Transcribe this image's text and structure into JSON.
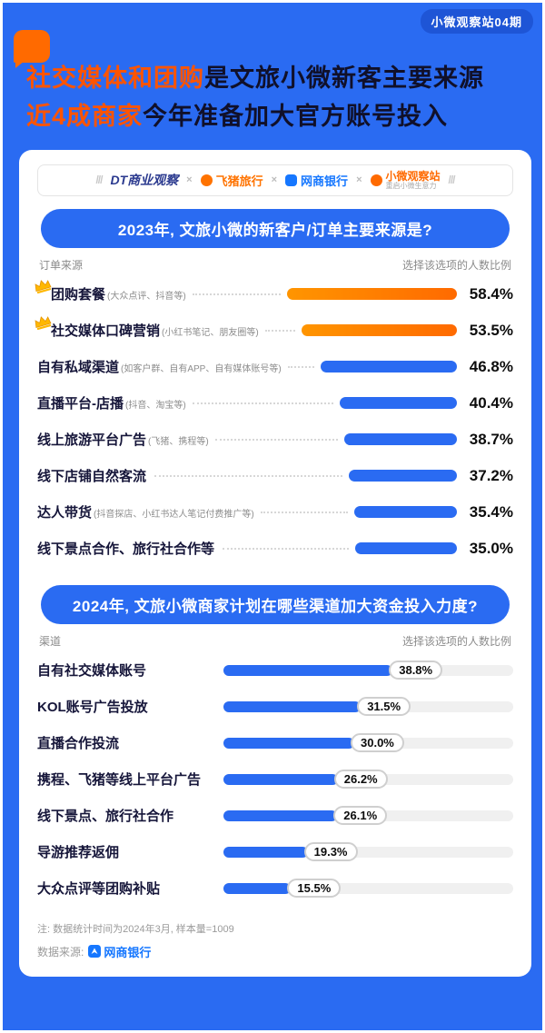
{
  "page": {
    "issue_badge": "小微观察站04期",
    "title_line1_highlight": "社交媒体和团购",
    "title_line1_rest": "是文旅小微新客主要来源",
    "title_line2_highlight": "近4成商家",
    "title_line2_rest": "今年准备加大官方账号投入"
  },
  "logos": {
    "dt": "DT商业观察",
    "feizhu": "飞猪旅行",
    "wangshang": "网商银行",
    "xiaowei": "小微观察站",
    "xiaowei_sub": "重启小微生意力",
    "separator": "×"
  },
  "section1": {
    "heading": "2023年, 文旅小微的新客户/订单主要来源是?",
    "col_left": "订单来源",
    "col_right": "选择该选项的人数比例",
    "rows": [
      {
        "label": "团购套餐",
        "note": "(大众点评、抖音等)",
        "value": "58.4%",
        "pct": 58.4
      },
      {
        "label": "社交媒体口碑营销",
        "note": "(小红书笔记、朋友圈等)",
        "value": "53.5%",
        "pct": 53.5
      },
      {
        "label": "自有私域渠道",
        "note": "(如客户群、自有APP、自有媒体账号等)",
        "value": "46.8%",
        "pct": 46.8
      },
      {
        "label": "直播平台-店播",
        "note": "(抖音、淘宝等)",
        "value": "40.4%",
        "pct": 40.4
      },
      {
        "label": "线上旅游平台广告",
        "note": "(飞猪、携程等)",
        "value": "38.7%",
        "pct": 38.7
      },
      {
        "label": "线下店铺自然客流",
        "note": "",
        "value": "37.2%",
        "pct": 37.2
      },
      {
        "label": "达人带货",
        "note": "(抖音探店、小红书达人笔记付费推广等)",
        "value": "35.4%",
        "pct": 35.4
      },
      {
        "label": "线下景点合作、旅行社合作等",
        "note": "",
        "value": "35.0%",
        "pct": 35.0
      }
    ]
  },
  "section2": {
    "heading": "2024年, 文旅小微商家计划在哪些渠道加大资金投入力度?",
    "col_left": "渠道",
    "col_right": "选择该选项的人数比例",
    "rows": [
      {
        "label": "自有社交媒体账号",
        "value": "38.8%",
        "pct": 38.8
      },
      {
        "label": "KOL账号广告投放",
        "value": "31.5%",
        "pct": 31.5
      },
      {
        "label": "直播合作投流",
        "value": "30.0%",
        "pct": 30.0
      },
      {
        "label": "携程、飞猪等线上平台广告",
        "value": "26.2%",
        "pct": 26.2
      },
      {
        "label": "线下景点、旅行社合作",
        "value": "26.1%",
        "pct": 26.1
      },
      {
        "label": "导游推荐返佣",
        "value": "19.3%",
        "pct": 19.3
      },
      {
        "label": "大众点评等团购补贴",
        "value": "15.5%",
        "pct": 15.5
      }
    ]
  },
  "footer": {
    "note": "注: 数据统计时间为2024年3月, 样本量=1009",
    "source_label": "数据来源:",
    "source_name": "网商银行"
  },
  "colors": {
    "background_blue": "#2A6BF2",
    "accent_orange": "#FF6A00",
    "bar_blue": "#2A6BF2",
    "dark_text": "#10102A"
  },
  "chart_data": [
    {
      "type": "bar",
      "orientation": "horizontal",
      "title": "2023年, 文旅小微的新客户/订单主要来源是?",
      "xlabel": "选择该选项的人数比例",
      "ylabel": "订单来源",
      "unit": "%",
      "categories": [
        "团购套餐 (大众点评、抖音等)",
        "社交媒体口碑营销 (小红书笔记、朋友圈等)",
        "自有私域渠道 (如客户群、自有APP、自有媒体账号等)",
        "直播平台-店播 (抖音、淘宝等)",
        "线上旅游平台广告 (飞猪、携程等)",
        "线下店铺自然客流",
        "达人带货 (抖音探店、小红书达人笔记付费推广等)",
        "线下景点合作、旅行社合作等"
      ],
      "values": [
        58.4,
        53.5,
        46.8,
        40.4,
        38.7,
        37.2,
        35.4,
        35.0
      ],
      "highlighted_indices": [
        0,
        1
      ],
      "highlight_color": "#FF6A00",
      "bar_color": "#2A6BF2",
      "xlim": [
        0,
        60
      ],
      "grid": false,
      "legend": false
    },
    {
      "type": "bar",
      "orientation": "horizontal",
      "title": "2024年, 文旅小微商家计划在哪些渠道加大资金投入力度?",
      "xlabel": "选择该选项的人数比例",
      "ylabel": "渠道",
      "unit": "%",
      "categories": [
        "自有社交媒体账号",
        "KOL账号广告投放",
        "直播合作投流",
        "携程、飞猪等线上平台广告",
        "线下景点、旅行社合作",
        "导游推荐返佣",
        "大众点评等团购补贴"
      ],
      "values": [
        38.8,
        31.5,
        30.0,
        26.2,
        26.1,
        19.3,
        15.5
      ],
      "bar_color": "#2A6BF2",
      "xlim": [
        0,
        40
      ],
      "grid": false,
      "legend": false
    }
  ]
}
